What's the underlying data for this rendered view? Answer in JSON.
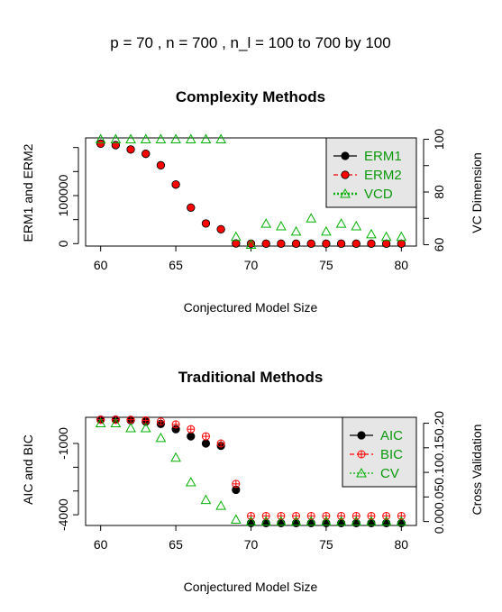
{
  "main_title": "p =  70 ,  n =  700 , n_l =  100 to 700 by 100",
  "colors": {
    "black": "#000000",
    "red": "#ff0000",
    "green": "#00b000",
    "legend_bg": "#e6e6e6"
  },
  "chart_data": [
    {
      "type": "scatter",
      "title": "Complexity Methods",
      "xlabel": "Conjectured Model Size",
      "ylabel_left": "ERM1 and ERM2",
      "ylabel_right": "VC Dimension",
      "xlim": [
        59,
        81
      ],
      "x_ticks": [
        60,
        65,
        70,
        75,
        80
      ],
      "y_left_lim": [
        -5000,
        220000
      ],
      "y_left_ticks": [
        0,
        50000,
        100000,
        150000,
        200000
      ],
      "y_left_tick_labels": [
        "0",
        "",
        "100000",
        "",
        ""
      ],
      "y_right_lim": [
        59.5,
        100.5
      ],
      "y_right_ticks": [
        60,
        70,
        80,
        90,
        100
      ],
      "y_right_tick_labels": [
        "60",
        "",
        "80",
        "",
        "100"
      ],
      "x": [
        60,
        61,
        62,
        63,
        64,
        65,
        66,
        67,
        68,
        69,
        70,
        71,
        72,
        73,
        74,
        75,
        76,
        77,
        78,
        79,
        80
      ],
      "series": [
        {
          "name": "ERM1",
          "axis": "left",
          "marker": "filled-circle",
          "color": "#000000",
          "values": [
            208000,
            205000,
            196000,
            187000,
            163000,
            123000,
            75000,
            42000,
            30000,
            500,
            0,
            0,
            0,
            0,
            0,
            0,
            0,
            0,
            0,
            0,
            0
          ]
        },
        {
          "name": "ERM2",
          "axis": "left",
          "marker": "filled-circle",
          "color": "#ff0000",
          "values": [
            208000,
            205000,
            196000,
            187000,
            163000,
            123000,
            75000,
            42000,
            30000,
            500,
            0,
            0,
            0,
            0,
            0,
            0,
            0,
            0,
            0,
            0,
            0
          ]
        },
        {
          "name": "VCD",
          "axis": "right",
          "marker": "open-triangle",
          "color": "#00b000",
          "values": [
            100,
            100,
            100,
            100,
            100,
            100,
            100,
            100,
            100,
            63,
            60,
            68,
            67,
            65,
            70,
            65,
            68,
            67,
            64,
            63,
            63
          ]
        }
      ],
      "legend": {
        "position": "top-right",
        "entries": [
          "ERM1",
          "ERM2",
          "VCD"
        ]
      }
    },
    {
      "type": "scatter",
      "title": "Traditional Methods",
      "xlabel": "Conjectured Model Size",
      "ylabel_left": "AIC and BIC",
      "ylabel_right": "Cross Validation",
      "xlim": [
        59,
        81
      ],
      "x_ticks": [
        60,
        65,
        70,
        75,
        80
      ],
      "y_left_lim": [
        -4450,
        100
      ],
      "y_left_ticks": [
        -1000,
        -2000,
        -3000,
        -4000
      ],
      "y_left_tick_labels": [
        "-1000",
        "",
        "",
        "-4000"
      ],
      "y_right_lim": [
        -0.008,
        0.212
      ],
      "y_right_ticks": [
        0.0,
        0.05,
        0.1,
        0.15,
        0.2
      ],
      "y_right_tick_labels": [
        "0.00",
        "0.05",
        "0.10",
        "0.15",
        "0.20"
      ],
      "x": [
        60,
        61,
        62,
        63,
        64,
        65,
        66,
        67,
        68,
        69,
        70,
        71,
        72,
        73,
        74,
        75,
        76,
        77,
        78,
        79,
        80
      ],
      "series": [
        {
          "name": "AIC",
          "axis": "left",
          "marker": "filled-circle",
          "color": "#000000",
          "values": [
            0,
            0,
            -30,
            -80,
            -180,
            -400,
            -700,
            -1000,
            -1100,
            -2950,
            -4350,
            -4350,
            -4350,
            -4350,
            -4350,
            -4350,
            -4350,
            -4350,
            -4350,
            -4350,
            -4350
          ]
        },
        {
          "name": "BIC",
          "axis": "left",
          "marker": "open-circle-plus",
          "color": "#ff0000",
          "values": [
            0,
            0,
            0,
            -30,
            -80,
            -200,
            -400,
            -700,
            -1000,
            -2700,
            -4050,
            -4050,
            -4050,
            -4050,
            -4050,
            -4050,
            -4050,
            -4050,
            -4050,
            -4050,
            -4050
          ]
        },
        {
          "name": "CV",
          "axis": "right",
          "marker": "open-triangle",
          "color": "#00b000",
          "values": [
            0.2,
            0.2,
            0.19,
            0.19,
            0.17,
            0.13,
            0.08,
            0.044,
            0.032,
            0.004,
            0.0,
            0.0,
            0.0,
            0.0,
            0.0,
            0.0,
            0.0,
            0.0,
            0.0,
            0.0,
            0.0
          ]
        }
      ],
      "legend": {
        "position": "top-right",
        "entries": [
          "AIC",
          "BIC",
          "CV"
        ]
      }
    }
  ]
}
